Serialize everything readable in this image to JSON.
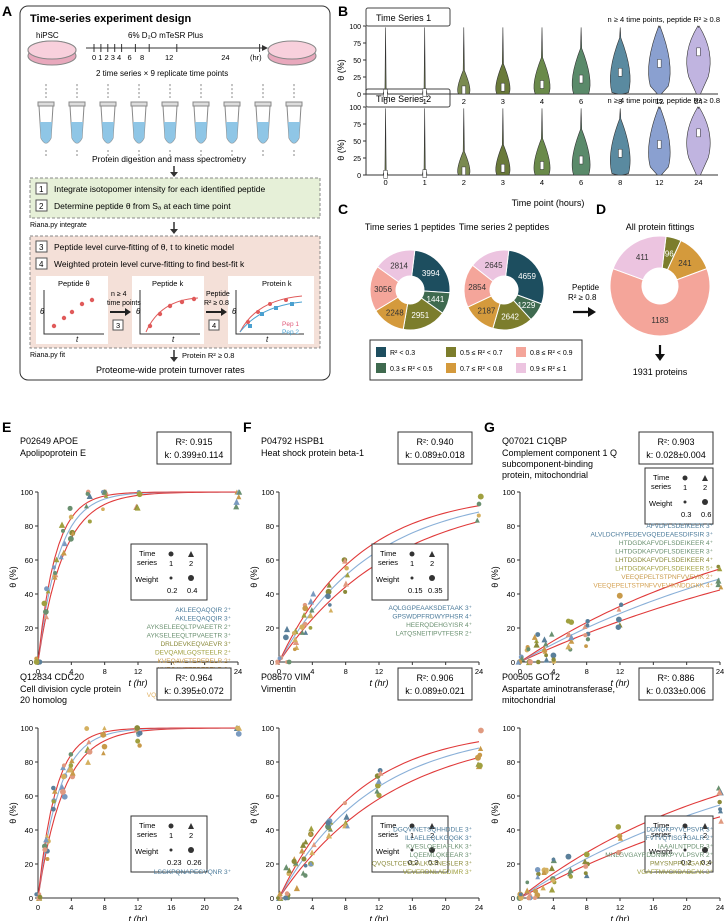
{
  "panel_labels": {
    "A": "A",
    "B": "B",
    "C": "C",
    "D": "D",
    "E": "E",
    "F": "F",
    "G": "G"
  },
  "panel_a": {
    "title": "Time-series experiment design",
    "cell": "hiPSC",
    "medium": "6% D₂O mTeSR Plus",
    "timeline_ticks": "0 1 2 3 4   6    8          12                       24",
    "hr": "(hr)",
    "replicate_note": "2 time series × 9 replicate time points",
    "digestion": "Protein digestion and mass spectrometry",
    "step1_num": "1",
    "step1": "Integrate isotopomer intensity for each identified peptide",
    "step2_num": "2",
    "step2": "Determine peptide θ from Sₐ at each time point",
    "riana_integrate": "Riana.py integrate",
    "step3_num": "3",
    "step3": "Peptide level curve-fitting of θ, t to kinetic model",
    "step4_num": "4",
    "step4": "Weighted protein level curve-fitting to find best-fit k",
    "mini1": "Peptide θ",
    "mini2": "Peptide k",
    "mini3": "Protein k",
    "arrow1a": "n ≥ 4",
    "arrow1b": "time points",
    "arrow1c": "3",
    "arrow2a": "Peptide",
    "arrow2b": "R² ≥ 0.8",
    "arrow2c": "4",
    "pep1": "Pep 1",
    "pep2": "Pep 2",
    "theta": "θ",
    "t": "t",
    "riana_fit": "Riana.py fit",
    "protein_r2": "Protein R² ≥ 0.8",
    "final": "Proteome-wide protein turnover rates"
  },
  "panel_b": {
    "series1": "Time Series 1",
    "series2": "Time Series 2",
    "note": "n ≥ 4 time points, peptide R² ≥ 0.8",
    "ylabel": "θ (%)",
    "xlabel": "Time point (hours)",
    "yticks": [
      "0",
      "25",
      "50",
      "75",
      "100"
    ],
    "timepoints": [
      "0",
      "1",
      "2",
      "3",
      "4",
      "6",
      "8",
      "12",
      "24"
    ]
  },
  "panel_c": {
    "title1": "Time series 1 peptides",
    "title2": "Time series 2 peptides",
    "arrow_label_a": "Peptide",
    "arrow_label_b": "R² ≥ 0.8",
    "legend": [
      {
        "label": "R² < 0.3",
        "color": "#1d4e5f"
      },
      {
        "label": "0.3 ≤ R² < 0.5",
        "color": "#3f6a4f"
      },
      {
        "label": "0.5 ≤ R² < 0.7",
        "color": "#7c7d2c"
      },
      {
        "label": "0.7 ≤ R² < 0.8",
        "color": "#d49a3c"
      },
      {
        "label": "0.8 ≤ R² < 0.9",
        "color": "#f4a59a"
      },
      {
        "label": "0.9 ≤ R² ≤ 1",
        "color": "#ecc4e0"
      }
    ]
  },
  "panel_d": {
    "title": "All protein fittings",
    "result": "1931 proteins"
  },
  "kinetic": {
    "ylabel": "θ (%)",
    "xlabel": "t (hr)",
    "yticks": [
      "0",
      "20",
      "40",
      "60",
      "80",
      "100"
    ],
    "xticks": [
      "0",
      "4",
      "8",
      "12",
      "16",
      "20",
      "24"
    ],
    "legend_ts": "Time",
    "legend_series": "series",
    "legend_weight": "Weight",
    "ts1": "1",
    "ts2": "2"
  },
  "chart_data": [
    {
      "type": "pie",
      "title": "Time series 1 peptides",
      "categories": [
        "R²<0.3",
        "0.3-0.5",
        "0.5-0.7",
        "0.7-0.8",
        "0.8-0.9",
        "0.9-1"
      ],
      "values": [
        3994,
        1441,
        2951,
        2248,
        3056,
        2814
      ]
    },
    {
      "type": "pie",
      "title": "Time series 2 peptides",
      "categories": [
        "R²<0.3",
        "0.3-0.5",
        "0.5-0.7",
        "0.7-0.8",
        "0.8-0.9",
        "0.9-1"
      ],
      "values": [
        4659,
        1229,
        2642,
        2187,
        2854,
        2645
      ]
    },
    {
      "type": "pie",
      "title": "All protein fittings",
      "categories": [
        "0.5-0.7",
        "0.7-0.8",
        "0.8-0.9",
        "0.9-1"
      ],
      "values": [
        96,
        241,
        1183,
        411
      ]
    },
    {
      "type": "line",
      "panel": "E",
      "id": "P02649 APOE",
      "name": "Apolipoprotein E",
      "r2": "R²: 0.915",
      "k_text": "k: 0.399±0.114",
      "k": 0.399,
      "w1": "0.2",
      "w2": "0.4",
      "ylim": [
        0,
        100
      ],
      "xlim": [
        0,
        24
      ],
      "peptides": [
        "AKLEEQAQQIR 2⁺",
        "AKLEEQAQQIR 3⁺",
        "AYKSELEEQLTPVAEETR 2⁺",
        "AYKSELEEQLTPVAEETR 3⁺",
        "DRLDEVKEQVAEVR 3⁺",
        "DEVQAMLGQSTEELR 2⁺",
        "KVEQAVETEPEPELR 2⁺",
        "KVEQAVETEPEPELR 3⁺",
        "LAVYQAGAR 2⁺",
        "LKSWFEPLVEDMQR 3⁺",
        "VQAAVGTSAAPVPSDNH 2⁺"
      ]
    },
    {
      "type": "line",
      "panel": "F",
      "id": "P04792 HSPB1",
      "name": "Heat shock protein beta-1",
      "r2": "R²: 0.940",
      "k_text": "k: 0.089±0.018",
      "k": 0.089,
      "w1": "0.15",
      "w2": "0.35",
      "ylim": [
        0,
        100
      ],
      "xlim": [
        0,
        24
      ],
      "peptides": [
        "AQLGGPEAAKSDETAAK 3⁺",
        "GPSWDPFRDWYPHSR 4⁺",
        "HEERQDEHGYISR 4⁺",
        "LATQSNEITIPVTFESR 2⁺"
      ]
    },
    {
      "type": "line",
      "panel": "G",
      "id": "Q07021 C1QBP",
      "name": "Complement component 1 Q subcomponent-binding protein, mitochondrial",
      "r2": "R²: 0.903",
      "k_text": "k: 0.028±0.004",
      "k": 0.028,
      "w1": "0.3",
      "w2": "0.6",
      "ylim": [
        0,
        100
      ],
      "xlim": [
        0,
        24
      ],
      "peptides": [
        "AFVDFLSDEIKEER 3⁺",
        "ALVLDCHYPEDEVGQEDEAESDIFSIR 3⁺",
        "HTDGDKAFVDFLSDEIKEER 4⁺",
        "LHTDGDKAFVDFLSDEIKEER 3⁺",
        "LHTDGDKAFVDFLSDEIKEER 4⁺",
        "LHTDGDKAFVDFLSDEIKEER 5⁺",
        "VEEQEPELTSTPNFVVEVIK 2⁺",
        "VEEQEPELTSTPNFVVEVIKNDDGKK 4⁺"
      ]
    },
    {
      "type": "line",
      "panel": "E2",
      "id": "Q12834 CDC20",
      "name": "Cell division cycle protein 20 homolog",
      "r2": "R²: 0.964",
      "k_text": "k: 0.395±0.072",
      "k": 0.395,
      "w1": "0.23",
      "w2": "0.26",
      "ylim": [
        0,
        100
      ],
      "xlim": [
        0,
        24
      ],
      "peptides": [
        "LSGKPQNAPEGYQNR 3⁺"
      ]
    },
    {
      "type": "line",
      "panel": "F2",
      "id": "P08670 VIM",
      "name": "Vimentin",
      "r2": "R²: 0.906",
      "k_text": "k: 0.089±0.021",
      "k": 0.089,
      "w1": "0.2",
      "w2": "0.3",
      "ylim": [
        0,
        100
      ],
      "xlim": [
        0,
        24
      ],
      "peptides": [
        "DGQVINETSQHHDDLE 3⁺",
        "ILLAELEQLKGQGK 3⁺",
        "KVESLQEEIAFLKK 3⁺",
        "LQEEMLQKEEAR 3⁺",
        "QVQSLTCEVDALKGTNESLER 3⁺",
        "VEVERDNLAEDIMR 3⁺"
      ]
    },
    {
      "type": "line",
      "panel": "G2",
      "id": "P00505 GOT2",
      "name": "Aspartate aminotransferase, mitochondrial",
      "r2": "R²: 0.886",
      "k_text": "k: 0.033±0.006",
      "k": 0.033,
      "w1": "0.2",
      "w2": "0.4",
      "ylim": [
        0,
        100
      ],
      "xlim": [
        0,
        24
      ],
      "peptides": [
        "DDNGKPYVLPSVR 3⁺",
        "FVTVQTISGTGALR 2⁺",
        "IAAAILNTPDLR 3⁺",
        "MNLGVGAYRDDNGKPYVLPSVR 2⁺",
        "PMYSNPPLNGAR 2⁺",
        "VGAFTMVCKDADEAK 3⁺"
      ]
    }
  ]
}
